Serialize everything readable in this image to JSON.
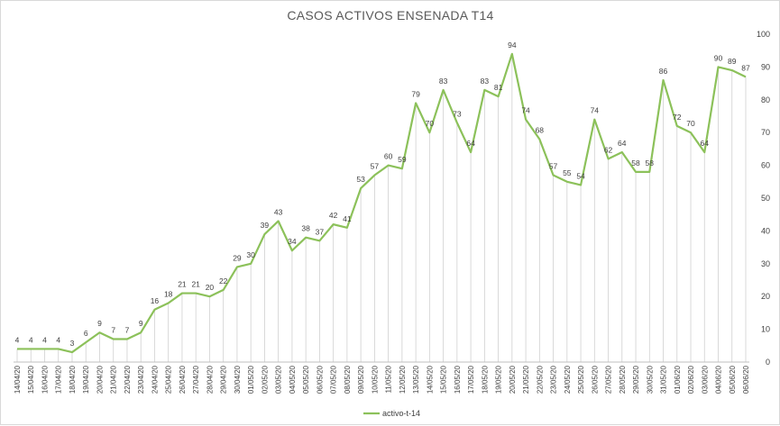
{
  "colors": {
    "series": "#8cc15a",
    "drop_line": "#d0d0d0",
    "axis": "#bfbfbf",
    "text": "#404040",
    "title": "#595959"
  },
  "chart_data": {
    "type": "line",
    "title": "CASOS ACTIVOS ENSENADA T14",
    "xlabel": "",
    "ylabel": "",
    "ylim": [
      0,
      100
    ],
    "y_ticks": [
      0,
      10,
      20,
      30,
      40,
      50,
      60,
      70,
      80,
      90,
      100
    ],
    "y_axis_side": "right",
    "grid": false,
    "drop_lines": true,
    "legend_position": "bottom",
    "categories": [
      "14/04/20",
      "15/04/20",
      "16/04/20",
      "17/04/20",
      "18/04/20",
      "19/04/20",
      "20/04/20",
      "21/04/20",
      "22/04/20",
      "23/04/20",
      "24/04/20",
      "25/04/20",
      "26/04/20",
      "27/04/20",
      "28/04/20",
      "29/04/20",
      "30/04/20",
      "01/05/20",
      "02/05/20",
      "03/05/20",
      "04/05/20",
      "05/05/20",
      "06/05/20",
      "07/05/20",
      "08/05/20",
      "09/05/20",
      "10/05/20",
      "11/05/20",
      "12/05/20",
      "13/05/20",
      "14/05/20",
      "15/05/20",
      "16/05/20",
      "17/05/20",
      "18/05/20",
      "19/05/20",
      "20/05/20",
      "21/05/20",
      "22/05/20",
      "23/05/20",
      "24/05/20",
      "25/05/20",
      "26/05/20",
      "27/05/20",
      "28/05/20",
      "29/05/20",
      "30/05/20",
      "31/05/20",
      "01/06/20",
      "02/06/20",
      "03/06/20",
      "04/06/20",
      "05/06/20",
      "06/06/20"
    ],
    "series": [
      {
        "name": "activo-t-14",
        "color": "#8cc15a",
        "values": [
          4,
          4,
          4,
          4,
          3,
          6,
          9,
          7,
          7,
          9,
          16,
          18,
          21,
          21,
          20,
          22,
          29,
          30,
          39,
          43,
          34,
          38,
          37,
          42,
          41,
          53,
          57,
          60,
          59,
          79,
          70,
          83,
          73,
          64,
          83,
          81,
          94,
          74,
          68,
          57,
          55,
          54,
          74,
          62,
          64,
          58,
          58,
          86,
          72,
          70,
          64,
          90,
          89,
          87
        ]
      }
    ]
  }
}
